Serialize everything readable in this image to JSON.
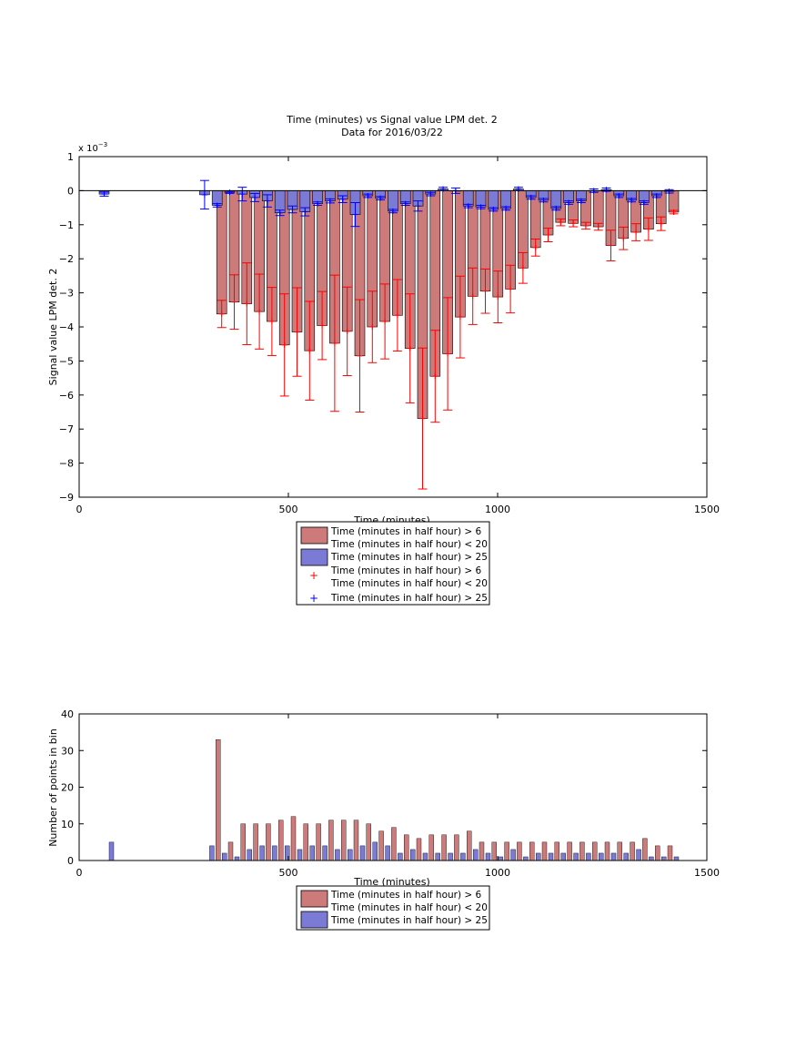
{
  "page": {
    "title_line1": "Time (minutes) vs Signal value LPM det. 2",
    "title_line2": "Data for 2016/03/22"
  },
  "colors": {
    "red_fill": "#cc7a7a",
    "blue_fill": "#7b7bd6",
    "red_err": "#ff0000",
    "blue_err": "#0000ff",
    "axis": "#000000"
  },
  "chart_data": [
    {
      "type": "bar",
      "title": "Time (minutes) vs Signal value LPM det. 2",
      "subtitle": "Data for 2016/03/22",
      "xlabel": "Time (minutes)",
      "ylabel": "Signal value LPM det. 2",
      "y_multiplier": "x 10^-3",
      "xlim": [
        0,
        1500
      ],
      "ylim": [
        -9,
        1
      ],
      "xticks": [
        0,
        500,
        1000,
        1500
      ],
      "yticks": [
        1,
        0,
        -1,
        -2,
        -3,
        -4,
        -5,
        -6,
        -7,
        -8,
        -9
      ],
      "grid": false,
      "legend_position": "below",
      "legend": [
        {
          "line1": "Time (minutes in half hour) > 6",
          "line2": "Time (minutes in half hour) < 20",
          "kind": "bar",
          "color": "red"
        },
        {
          "line1": "Time (minutes in half hour) > 25",
          "line2": "",
          "kind": "bar",
          "color": "blue"
        },
        {
          "line1": "Time (minutes in half hour) > 6",
          "line2": "Time (minutes in half hour) < 20",
          "kind": "marker",
          "color": "red"
        },
        {
          "line1": "Time (minutes in half hour) > 25",
          "line2": "",
          "kind": "marker",
          "color": "blue"
        }
      ],
      "series": [
        {
          "name": "Time (minutes in half hour) > 6, Time (minutes in half hour) < 20",
          "x": [
            345,
            375,
            405,
            435,
            465,
            495,
            525,
            555,
            585,
            615,
            645,
            675,
            705,
            735,
            765,
            795,
            825,
            855,
            885,
            915,
            945,
            975,
            1005,
            1035,
            1065,
            1095,
            1125,
            1155,
            1185,
            1215,
            1245,
            1275,
            1305,
            1335,
            1365,
            1395,
            1425
          ],
          "values": [
            -3.62,
            -3.27,
            -3.32,
            -3.55,
            -3.84,
            -4.53,
            -4.15,
            -4.7,
            -3.96,
            -4.48,
            -4.13,
            -4.85,
            -4.0,
            -3.84,
            -3.66,
            -4.63,
            -6.69,
            -5.45,
            -4.79,
            -3.71,
            -3.1,
            -2.95,
            -3.12,
            -2.89,
            -2.27,
            -1.67,
            -1.3,
            -0.93,
            -0.96,
            -1.03,
            -1.06,
            -1.61,
            -1.4,
            -1.22,
            -1.13,
            -0.97,
            -0.63
          ],
          "error": [
            0.4,
            0.8,
            1.2,
            1.1,
            1.0,
            1.5,
            1.3,
            1.45,
            1.0,
            2.0,
            1.3,
            1.65,
            1.05,
            1.1,
            1.05,
            1.6,
            2.07,
            1.35,
            1.65,
            1.2,
            0.83,
            0.65,
            0.76,
            0.7,
            0.45,
            0.25,
            0.2,
            0.1,
            0.1,
            0.1,
            0.1,
            0.45,
            0.33,
            0.25,
            0.33,
            0.2,
            0.05
          ]
        },
        {
          "name": "Time (minutes in half hour) > 25",
          "x": [
            75,
            315,
            345,
            375,
            405,
            435,
            465,
            495,
            525,
            555,
            585,
            615,
            645,
            675,
            705,
            735,
            765,
            795,
            825,
            855,
            885,
            915,
            945,
            975,
            1005,
            1035,
            1065,
            1095,
            1125,
            1155,
            1185,
            1215,
            1245,
            1275,
            1305,
            1335,
            1365,
            1395,
            1425
          ],
          "values": [
            -0.1,
            -0.12,
            -0.43,
            -0.05,
            -0.1,
            -0.2,
            -0.3,
            -0.65,
            -0.55,
            -0.62,
            -0.38,
            -0.3,
            -0.25,
            -0.7,
            -0.15,
            -0.22,
            -0.6,
            -0.38,
            -0.45,
            -0.1,
            0.05,
            0.0,
            -0.45,
            -0.48,
            -0.55,
            -0.52,
            0.05,
            -0.2,
            -0.28,
            -0.52,
            -0.35,
            -0.3,
            0.0,
            0.03,
            -0.15,
            -0.28,
            -0.35,
            -0.15,
            -0.02
          ],
          "error": [
            0.06,
            0.42,
            0.05,
            0.03,
            0.2,
            0.12,
            0.18,
            0.08,
            0.1,
            0.12,
            0.05,
            0.06,
            0.1,
            0.35,
            0.05,
            0.05,
            0.05,
            0.05,
            0.15,
            0.05,
            0.05,
            0.08,
            0.05,
            0.05,
            0.05,
            0.05,
            0.05,
            0.05,
            0.05,
            0.05,
            0.05,
            0.05,
            0.05,
            0.05,
            0.05,
            0.05,
            0.05,
            0.05,
            0.05
          ]
        }
      ]
    },
    {
      "type": "bar",
      "title": "",
      "xlabel": "Time (minutes)",
      "ylabel": "Number of points in bin",
      "xlim": [
        0,
        1500
      ],
      "ylim": [
        0,
        40
      ],
      "xticks": [
        0,
        500,
        1000,
        1500
      ],
      "yticks": [
        0,
        10,
        20,
        30,
        40
      ],
      "grid": false,
      "legend_position": "below",
      "legend": [
        {
          "line1": "Time (minutes in half hour) > 6",
          "line2": "Time (minutes in half hour) < 20",
          "kind": "bar",
          "color": "red"
        },
        {
          "line1": "Time (minutes in half hour) > 25",
          "line2": "",
          "kind": "bar",
          "color": "blue"
        }
      ],
      "series": [
        {
          "name": "Time (minutes in half hour) > 6, Time (minutes in half hour) < 20",
          "x": [
            345,
            375,
            405,
            435,
            465,
            495,
            525,
            555,
            585,
            615,
            645,
            675,
            705,
            735,
            765,
            795,
            825,
            855,
            885,
            915,
            945,
            975,
            1005,
            1035,
            1065,
            1095,
            1125,
            1155,
            1185,
            1215,
            1245,
            1275,
            1305,
            1335,
            1365,
            1395,
            1425
          ],
          "values": [
            33,
            5,
            10,
            10,
            10,
            11,
            12,
            10,
            10,
            11,
            11,
            11,
            10,
            8,
            9,
            7,
            6,
            7,
            7,
            7,
            8,
            5,
            5,
            5,
            5,
            5,
            5,
            5,
            5,
            5,
            5,
            5,
            5,
            5,
            6,
            4,
            4
          ]
        },
        {
          "name": "Time (minutes in half hour) > 25",
          "x": [
            75,
            315,
            345,
            375,
            405,
            435,
            465,
            495,
            525,
            555,
            585,
            615,
            645,
            675,
            705,
            735,
            765,
            795,
            825,
            855,
            885,
            915,
            945,
            975,
            1005,
            1035,
            1065,
            1095,
            1125,
            1155,
            1185,
            1215,
            1245,
            1275,
            1305,
            1335,
            1365,
            1395,
            1425
          ],
          "values": [
            5,
            4,
            2,
            1,
            3,
            4,
            4,
            4,
            3,
            4,
            4,
            3,
            3,
            4,
            5,
            4,
            2,
            3,
            2,
            2,
            2,
            2,
            3,
            2,
            1,
            3,
            1,
            2,
            2,
            2,
            2,
            2,
            2,
            2,
            2,
            3,
            1,
            1,
            1
          ]
        }
      ]
    }
  ]
}
